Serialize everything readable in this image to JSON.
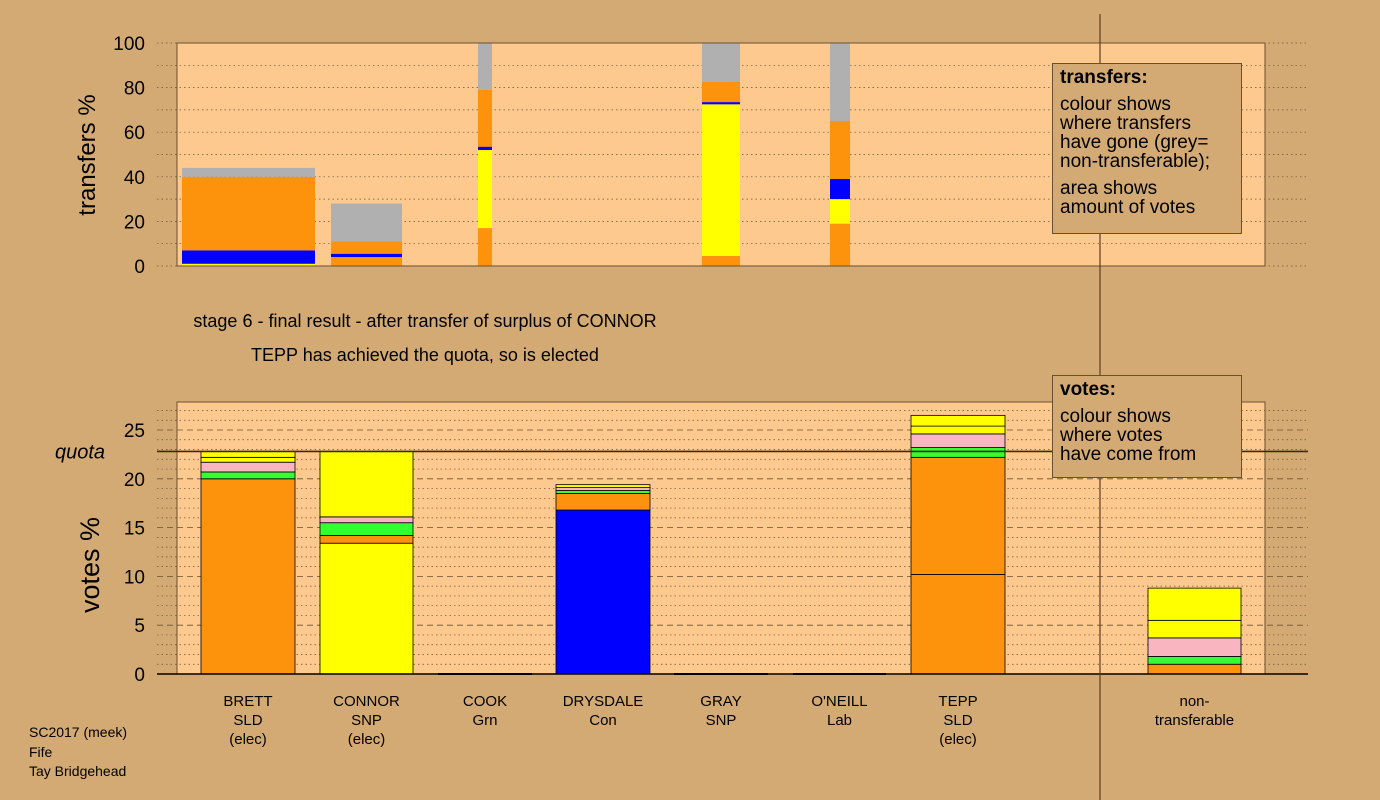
{
  "colors": {
    "page_bg": "#d4aa74",
    "plot_bg": "#fdc98e",
    "orange": "#fd920c",
    "yellow": "#ffff00",
    "blue": "#0000ff",
    "grey": "#b0b0b0",
    "pink": "#f9b5c0",
    "green": "#33ff33"
  },
  "transfers_legend": {
    "title": "transfers:",
    "line1": "colour shows",
    "line2": "where transfers",
    "line3": "have gone (grey=",
    "line4": "non-transferable);",
    "line5": "area shows",
    "line6": "amount of votes"
  },
  "votes_legend": {
    "title": "votes:",
    "line1": "colour shows",
    "line2": "where votes",
    "line3": "have come from"
  },
  "caption": {
    "line1": "stage 6 - final result - after transfer of surplus of CONNOR",
    "line2": "TEPP has achieved the quota, so is elected"
  },
  "footer": {
    "line1": "SC2017 (meek)",
    "line2": "Fife",
    "line3": "Tay Bridgehead"
  },
  "chart_data": [
    {
      "type": "bar",
      "name": "transfers",
      "ylabel": "transfers %",
      "ylim": [
        0,
        100
      ],
      "yticks": [
        0,
        20,
        40,
        60,
        80,
        100
      ],
      "columns": [
        {
          "segments": [
            {
              "value": 1,
              "color": "yellow"
            },
            {
              "value": 6,
              "color": "blue"
            },
            {
              "value": 33,
              "color": "orange"
            },
            {
              "value": 4,
              "color": "grey"
            }
          ]
        },
        {
          "segments": [
            {
              "value": 4,
              "color": "orange"
            },
            {
              "value": 1.5,
              "color": "blue"
            },
            {
              "value": 5.5,
              "color": "orange"
            },
            {
              "value": 17,
              "color": "grey"
            }
          ]
        },
        {
          "segments": [
            {
              "value": 17,
              "color": "orange"
            },
            {
              "value": 35,
              "color": "yellow"
            },
            {
              "value": 1.5,
              "color": "blue"
            },
            {
              "value": 25.5,
              "color": "orange"
            },
            {
              "value": 21,
              "color": "grey"
            }
          ]
        },
        {
          "segments": [
            {
              "value": 4.5,
              "color": "orange"
            },
            {
              "value": 68,
              "color": "yellow"
            },
            {
              "value": 1,
              "color": "blue"
            },
            {
              "value": 9,
              "color": "orange"
            },
            {
              "value": 17.5,
              "color": "grey"
            }
          ]
        },
        {
          "segments": [
            {
              "value": 19,
              "color": "orange"
            },
            {
              "value": 11,
              "color": "yellow"
            },
            {
              "value": 9,
              "color": "blue"
            },
            {
              "value": 26,
              "color": "orange"
            },
            {
              "value": 35,
              "color": "grey"
            }
          ]
        }
      ]
    },
    {
      "type": "bar",
      "name": "votes",
      "ylabel": "votes %",
      "ylim": [
        0,
        28
      ],
      "yticks": [
        0,
        5,
        10,
        15,
        20,
        25
      ],
      "quota": 22.8,
      "quota_label": "quota",
      "candidates": [
        {
          "line1": "BRETT",
          "line2": "SLD",
          "line3": "(elec)",
          "segments": [
            {
              "value": 20,
              "color": "orange"
            },
            {
              "value": 0.7,
              "color": "green"
            },
            {
              "value": 1,
              "color": "pink"
            },
            {
              "value": 0.5,
              "color": "yellow"
            },
            {
              "value": 0.6,
              "color": "yellow"
            }
          ]
        },
        {
          "line1": "CONNOR",
          "line2": "SNP",
          "line3": "(elec)",
          "segments": [
            {
              "value": 13.4,
              "color": "yellow"
            },
            {
              "value": 0.8,
              "color": "orange"
            },
            {
              "value": 1.3,
              "color": "green"
            },
            {
              "value": 0.6,
              "color": "pink"
            },
            {
              "value": 6.7,
              "color": "yellow"
            }
          ]
        },
        {
          "line1": "COOK",
          "line2": "Grn",
          "line3": "",
          "segments": []
        },
        {
          "line1": "DRYSDALE",
          "line2": "Con",
          "line3": "",
          "segments": [
            {
              "value": 16.8,
              "color": "blue"
            },
            {
              "value": 1.7,
              "color": "orange"
            },
            {
              "value": 0.3,
              "color": "green"
            },
            {
              "value": 0.3,
              "color": "pink"
            },
            {
              "value": 0.3,
              "color": "yellow"
            }
          ]
        },
        {
          "line1": "GRAY",
          "line2": "SNP",
          "line3": "",
          "segments": []
        },
        {
          "line1": "O'NEILL",
          "line2": "Lab",
          "line3": "",
          "segments": []
        },
        {
          "line1": "TEPP",
          "line2": "SLD",
          "line3": "(elec)",
          "segments": [
            {
              "value": 10.2,
              "color": "orange"
            },
            {
              "value": 12,
              "color": "orange"
            },
            {
              "value": 1,
              "color": "green"
            },
            {
              "value": 1.4,
              "color": "pink"
            },
            {
              "value": 0.8,
              "color": "yellow"
            },
            {
              "value": 1.1,
              "color": "yellow"
            }
          ]
        },
        {
          "line1": "non-",
          "line2": "transferable",
          "line3": "",
          "segments": [
            {
              "value": 1,
              "color": "orange"
            },
            {
              "value": 0.8,
              "color": "green"
            },
            {
              "value": 1.9,
              "color": "pink"
            },
            {
              "value": 1.8,
              "color": "yellow"
            },
            {
              "value": 3.3,
              "color": "yellow"
            }
          ]
        }
      ]
    }
  ]
}
